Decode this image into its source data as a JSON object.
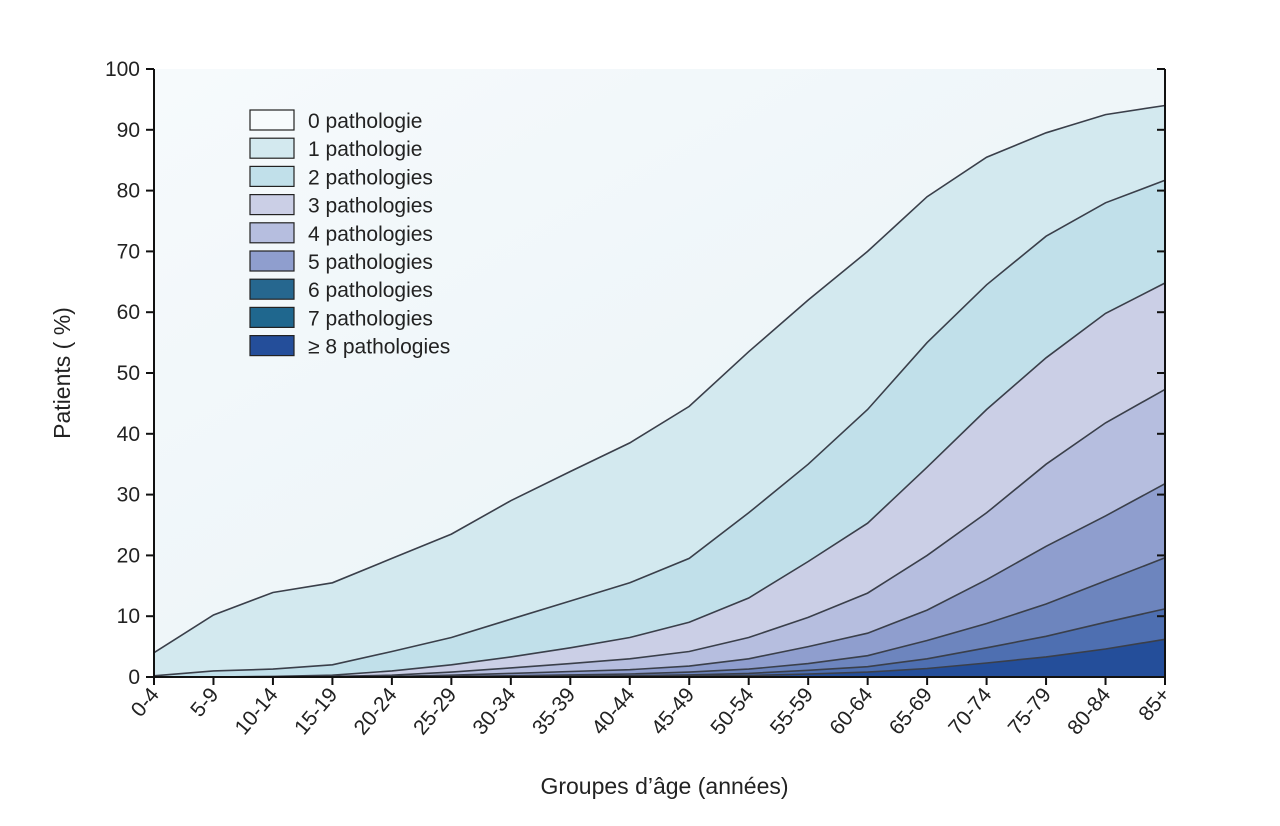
{
  "chart_data": {
    "type": "area",
    "stacked": true,
    "xlabel": "Groupes d’âge (années)",
    "ylabel": "Patients ( %)",
    "ylim": [
      0,
      100
    ],
    "yticks": [
      0,
      10,
      20,
      30,
      40,
      50,
      60,
      70,
      80,
      90,
      100
    ],
    "categories": [
      "0-4",
      "5-9",
      "10-14",
      "15-19",
      "20-24",
      "25-29",
      "30-34",
      "35-39",
      "40-44",
      "45-49",
      "50-54",
      "55-59",
      "60-64",
      "65-69",
      "70-74",
      "75-79",
      "80-84",
      "85+"
    ],
    "legend_position": "top-left",
    "legend": [
      {
        "label": "0 pathologie",
        "color": "#f7fbfd"
      },
      {
        "label": "1 pathologie",
        "color": "#d3e9ef"
      },
      {
        "label": "2 pathologies",
        "color": "#c1e0ea"
      },
      {
        "label": "3 pathologies",
        "color": "#cbcfe6"
      },
      {
        "label": "4 pathologies",
        "color": "#b6bedf"
      },
      {
        "label": "5 pathologies",
        "color": "#8f9ece"
      },
      {
        "label": "6 pathologies",
        "color": "#26678f"
      },
      {
        "label": "7 pathologies",
        "color": "#1f678e"
      },
      {
        "label": "≥ 8 pathologies",
        "color": "#244e9a"
      }
    ],
    "cumulative_boundaries": [
      {
        "name": "≥1",
        "values": [
          4,
          10.2,
          13.9,
          15.5,
          19.5,
          23.5,
          29,
          33.8,
          38.5,
          44.5,
          53.5,
          62,
          70,
          79,
          85.5,
          89.5,
          92.5,
          94
        ]
      },
      {
        "name": "≥2",
        "values": [
          0.2,
          1,
          1.3,
          2,
          4.2,
          6.5,
          9.5,
          12.5,
          15.5,
          19.5,
          27,
          35,
          44,
          55,
          64.5,
          72.5,
          78,
          81.7
        ]
      },
      {
        "name": "≥3",
        "values": [
          0,
          0,
          0.1,
          0.3,
          1,
          2,
          3.3,
          4.8,
          6.5,
          9,
          13,
          19,
          25.3,
          34.5,
          44,
          52.5,
          59.8,
          64.8
        ]
      },
      {
        "name": "≥4",
        "values": [
          0,
          0,
          0,
          0.1,
          0.3,
          0.8,
          1.5,
          2.2,
          3,
          4.2,
          6.5,
          9.8,
          13.8,
          20,
          27,
          35,
          41.8,
          47.3
        ]
      },
      {
        "name": "≥5",
        "values": [
          0,
          0,
          0,
          0,
          0.1,
          0.3,
          0.6,
          0.9,
          1.2,
          1.8,
          3,
          5,
          7.2,
          11,
          16,
          21.5,
          26.5,
          31.8
        ]
      },
      {
        "name": "≥6",
        "values": [
          0,
          0,
          0,
          0,
          0,
          0.1,
          0.2,
          0.35,
          0.5,
          0.8,
          1.3,
          2.2,
          3.5,
          6,
          8.8,
          12,
          15.8,
          19.6
        ]
      },
      {
        "name": "≥7",
        "values": [
          0,
          0,
          0,
          0,
          0,
          0,
          0.1,
          0.15,
          0.2,
          0.35,
          0.6,
          1.1,
          1.7,
          3,
          4.8,
          6.7,
          9,
          11.2
        ]
      },
      {
        "name": "≥8",
        "values": [
          0,
          0,
          0,
          0,
          0,
          0,
          0,
          0.05,
          0.1,
          0.15,
          0.25,
          0.5,
          0.8,
          1.4,
          2.3,
          3.3,
          4.6,
          6.2
        ]
      }
    ],
    "layer_fills": [
      "#eef6f9",
      "#d3e9ef",
      "#c1e0ea",
      "#cbcfe6",
      "#b6bedf",
      "#8f9ece",
      "#6d85be",
      "#4e6fb1",
      "#244e9a"
    ]
  }
}
